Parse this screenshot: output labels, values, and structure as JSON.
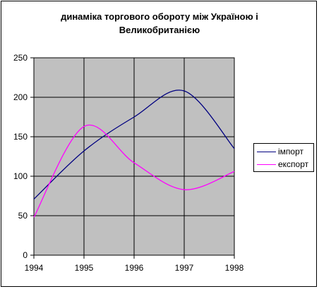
{
  "colors": {
    "plot_background": "#c0c0c0",
    "gridlines": "#000000",
    "import_line": "#000080",
    "export_line": "#ff00ff"
  },
  "chart_data": {
    "type": "line",
    "title_lines": [
      "динаміка торгового обороту між Україною і",
      "Великобританією"
    ],
    "xlabel": "",
    "ylabel": "",
    "x": [
      1994,
      1995,
      1996,
      1997,
      1998
    ],
    "xlim": [
      1994,
      1998
    ],
    "ylim": [
      0,
      250
    ],
    "x_ticks": [
      "1994",
      "1995",
      "1996",
      "1997",
      "1998"
    ],
    "y_ticks": [
      "0",
      "50",
      "100",
      "150",
      "200",
      "250"
    ],
    "grid": true,
    "smooth": true,
    "legend_position": "right",
    "series": [
      {
        "name": "імпорт",
        "color_key": "import_line",
        "values": [
          71,
          132,
          175,
          208,
          135
        ]
      },
      {
        "name": "експорт",
        "color_key": "export_line",
        "values": [
          48,
          163,
          117,
          83,
          106
        ]
      }
    ]
  }
}
